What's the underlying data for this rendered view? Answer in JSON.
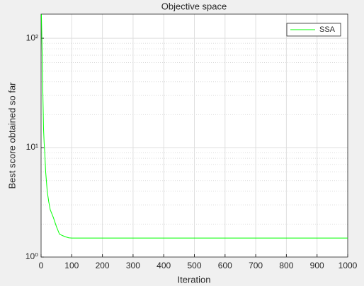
{
  "chart_data": {
    "type": "line",
    "title": "Objective space",
    "x_label": "Iteration",
    "y_label": "Best score obtained so far",
    "x": [
      1,
      2,
      4,
      6,
      8,
      10,
      12,
      15,
      20,
      25,
      30,
      40,
      50,
      60,
      70,
      80,
      90,
      100,
      200,
      300,
      400,
      500,
      600,
      700,
      800,
      900,
      1000
    ],
    "series": [
      {
        "name": "SSA",
        "color": "#00ff00",
        "values": [
          165,
          120,
          60,
          30,
          15,
          11,
          9,
          6,
          4,
          3.2,
          2.7,
          2.3,
          1.9,
          1.62,
          1.57,
          1.53,
          1.5,
          1.49,
          1.49,
          1.49,
          1.49,
          1.49,
          1.49,
          1.49,
          1.49,
          1.49,
          1.49
        ]
      }
    ],
    "xlim": [
      0,
      1000
    ],
    "xticks": [
      0,
      100,
      200,
      300,
      400,
      500,
      600,
      700,
      800,
      900,
      1000
    ],
    "ylim": [
      1,
      166
    ],
    "ylog": true,
    "yticks": [
      {
        "value": 1,
        "label": "10⁰"
      },
      {
        "value": 10,
        "label": "10¹"
      },
      {
        "value": 100,
        "label": "10²"
      }
    ],
    "grid": true,
    "minor_grid": true,
    "legend": "upper right"
  }
}
